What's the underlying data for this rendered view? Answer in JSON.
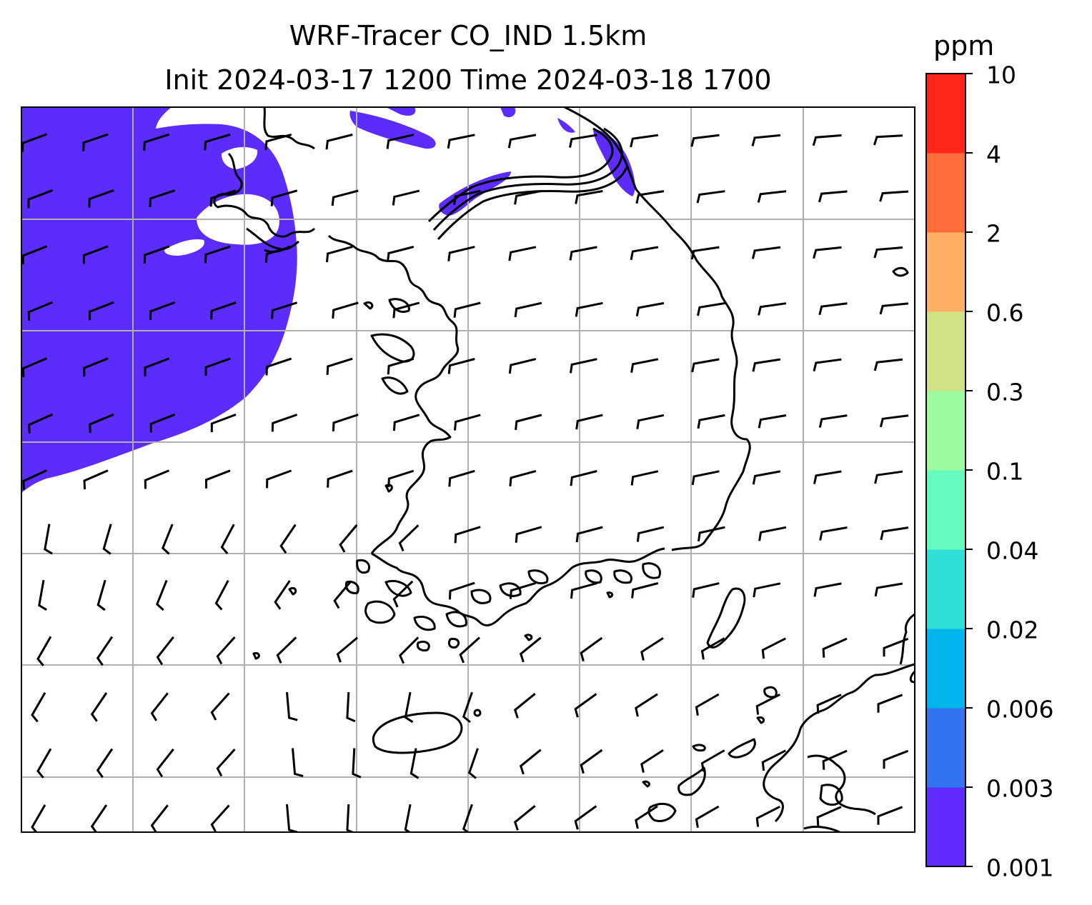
{
  "map": {
    "title_line1": "WRF-Tracer CO_IND 1.5km",
    "title_line2": "Init 2024-03-17 1200 Time 2024-03-18 1700",
    "plume_color": "#5b2cfb",
    "coastline_color": "#000000",
    "grid_color": "#b0b0b0",
    "wind_barb_color": "#000000",
    "features": [
      "tracer-plume",
      "coastlines",
      "gridlines",
      "wind-barbs"
    ]
  },
  "colorbar": {
    "unit": "ppm",
    "levels": [
      "0.001",
      "0.003",
      "0.006",
      "0.02",
      "0.04",
      "0.1",
      "0.3",
      "0.6",
      "2",
      "4",
      "10"
    ],
    "colors": [
      "#5f2bff",
      "#3274f0",
      "#00b4ec",
      "#2ee0d8",
      "#66fbbe",
      "#9dfb9f",
      "#d0e384",
      "#fdb064",
      "#ff6e3a",
      "#ff2818"
    ]
  }
}
